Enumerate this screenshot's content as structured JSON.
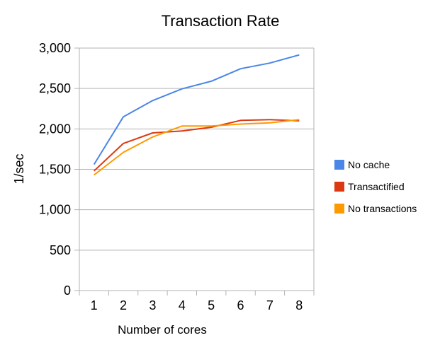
{
  "chart_data": {
    "type": "line",
    "title": "Transaction Rate",
    "xlabel": "Number of cores",
    "ylabel": "1/sec",
    "categories": [
      "1",
      "2",
      "3",
      "4",
      "5",
      "6",
      "7",
      "8"
    ],
    "ylim": [
      0,
      3000
    ],
    "yticks": [
      0,
      500,
      1000,
      1500,
      2000,
      2500,
      3000
    ],
    "ytick_labels": [
      "0",
      "500",
      "1,000",
      "1,500",
      "2,000",
      "2,500",
      "3,000"
    ],
    "grid": true,
    "legend_position": "right",
    "series": [
      {
        "name": "No cache",
        "color": "#4a86e8",
        "values": [
          1560,
          2150,
          2350,
          2495,
          2590,
          2745,
          2815,
          2915
        ]
      },
      {
        "name": "Transactified",
        "color": "#dc3912",
        "values": [
          1480,
          1820,
          1950,
          1975,
          2020,
          2105,
          2115,
          2100
        ]
      },
      {
        "name": "No transactions",
        "color": "#ff9900",
        "values": [
          1430,
          1710,
          1900,
          2035,
          2035,
          2060,
          2075,
          2115
        ]
      }
    ]
  }
}
